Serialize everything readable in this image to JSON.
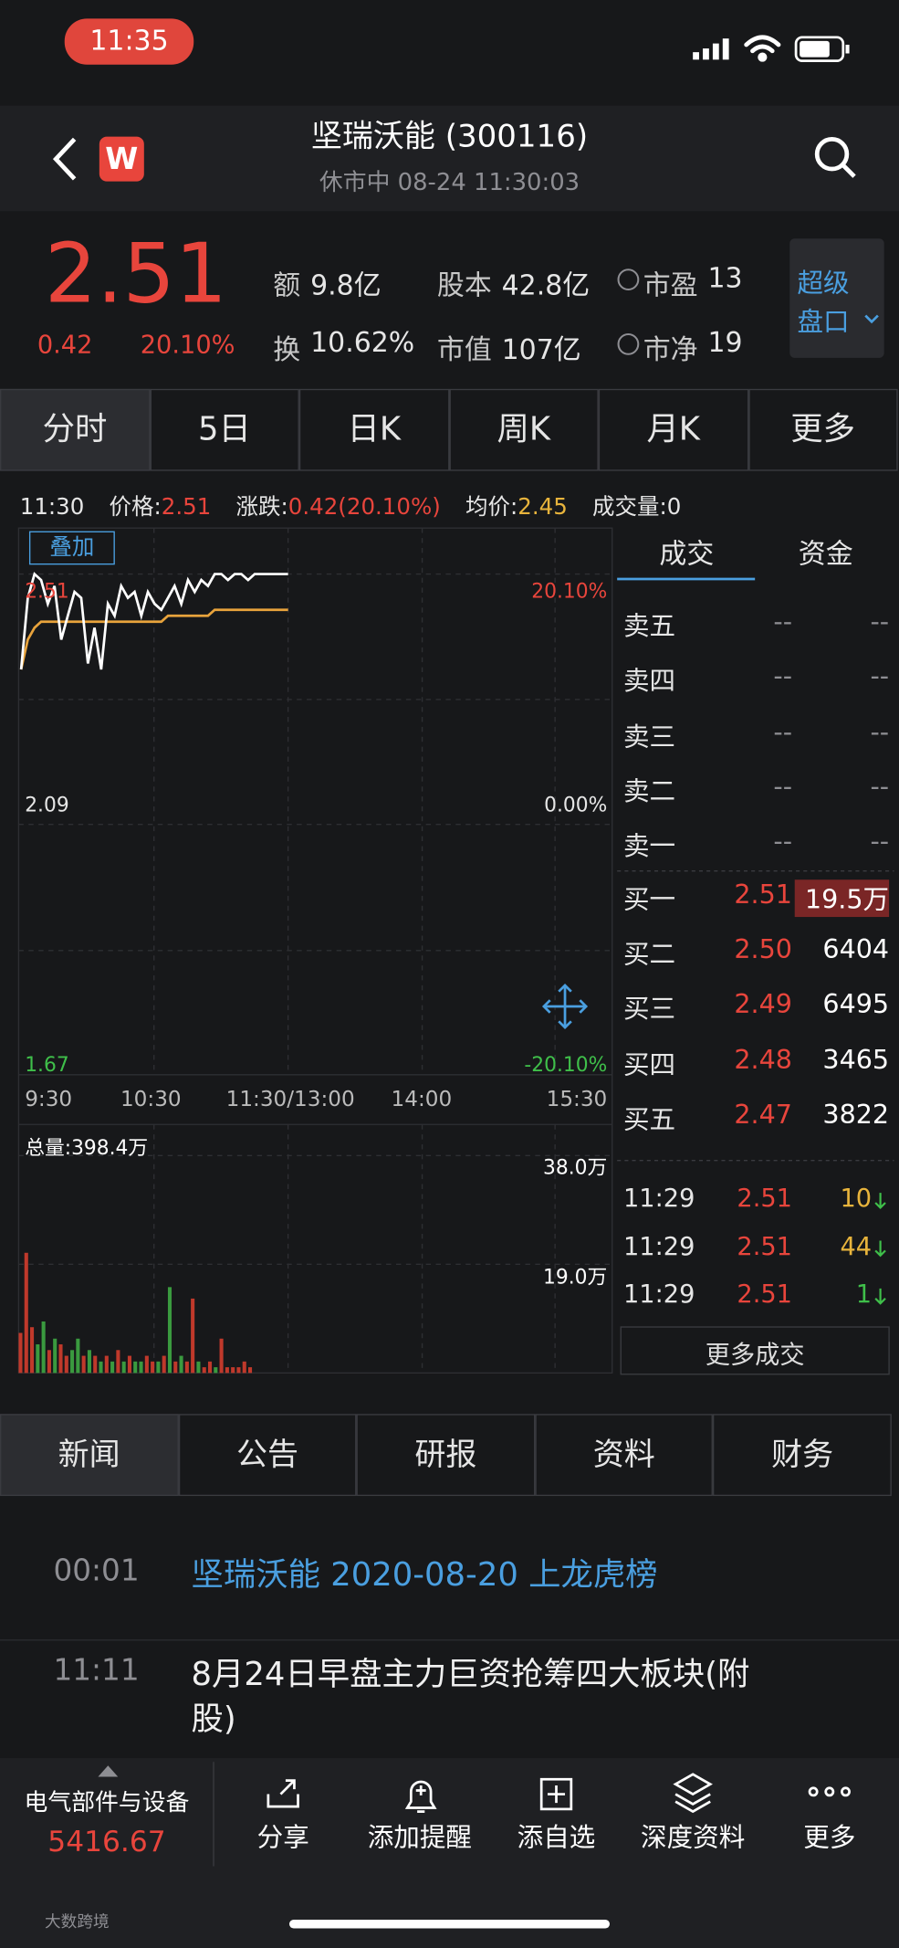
{
  "status": {
    "time": "11:35"
  },
  "header": {
    "logo": "W",
    "title": "坚瑞沃能 (300116)",
    "subtitle": "休市中 08-24 11:30:03"
  },
  "quote": {
    "price": "2.51",
    "change": "0.42",
    "change_pct": "20.10%",
    "stats": [
      {
        "label": "额",
        "value": "9.8亿"
      },
      {
        "label": "股本",
        "value": "42.8亿"
      },
      {
        "label": "市盈",
        "value": "13"
      },
      {
        "label": "换",
        "value": "10.62%"
      },
      {
        "label": "市值",
        "value": "107亿"
      },
      {
        "label": "市净",
        "value": "19"
      }
    ],
    "super_panel": [
      "超级",
      "盘口"
    ]
  },
  "tabs": [
    "分时",
    "5日",
    "日K",
    "周K",
    "月K",
    "更多"
  ],
  "info": {
    "time": "11:30",
    "items": [
      {
        "label": "价格:",
        "value": "2.51"
      },
      {
        "label": "涨跌:",
        "value": "0.42(20.10%)"
      },
      {
        "label": "均价:",
        "value": "2.45"
      },
      {
        "label": "成交量:",
        "value": "0"
      }
    ]
  },
  "chart": {
    "overlay": "叠加",
    "yticks": [
      2.51,
      2.09,
      1.67
    ],
    "pct_ticks": [
      "20.10%",
      "0.00%",
      "-20.10%"
    ],
    "time_labels": [
      "9:30",
      "10:30",
      "11:30/13:00",
      "14:00",
      "15:30"
    ],
    "total_volume": "总量:398.4万",
    "vol_ticks": [
      {
        "value": 38,
        "label": "38.0万"
      },
      {
        "value": 19,
        "label": "19.0万"
      }
    ],
    "price": [
      2.35,
      2.47,
      2.51,
      2.5,
      2.46,
      2.49,
      2.4,
      2.44,
      2.48,
      2.47,
      2.36,
      2.42,
      2.35,
      2.46,
      2.44,
      2.49,
      2.47,
      2.48,
      2.44,
      2.48,
      2.46,
      2.45,
      2.47,
      2.49,
      2.46,
      2.5,
      2.48,
      2.5,
      2.49,
      2.51,
      2.51,
      2.5,
      2.51,
      2.51,
      2.5,
      2.51,
      2.51,
      2.51,
      2.51,
      2.51,
      2.51
    ],
    "avg": [
      2.35,
      2.4,
      2.42,
      2.43,
      2.43,
      2.43,
      2.43,
      2.43,
      2.43,
      2.43,
      2.43,
      2.43,
      2.43,
      2.43,
      2.43,
      2.43,
      2.43,
      2.43,
      2.43,
      2.43,
      2.43,
      2.43,
      2.44,
      2.44,
      2.44,
      2.44,
      2.44,
      2.44,
      2.44,
      2.45,
      2.45,
      2.45,
      2.45,
      2.45,
      2.45,
      2.45,
      2.45,
      2.45,
      2.45,
      2.45,
      2.45
    ],
    "volume": [
      7,
      21,
      8,
      5,
      9,
      4,
      6,
      5,
      3,
      4,
      6,
      3,
      4,
      3,
      2,
      3,
      2,
      4,
      2,
      3,
      2,
      2,
      3,
      2,
      2,
      3,
      15,
      2,
      3,
      2,
      13,
      2,
      1,
      2,
      1,
      6,
      1,
      1,
      1,
      2,
      1
    ]
  },
  "order_book": {
    "tabs": [
      "成交",
      "资金"
    ],
    "asks": [
      {
        "label": "卖五",
        "price": "--",
        "vol": "--"
      },
      {
        "label": "卖四",
        "price": "--",
        "vol": "--"
      },
      {
        "label": "卖三",
        "price": "--",
        "vol": "--"
      },
      {
        "label": "卖二",
        "price": "--",
        "vol": "--"
      },
      {
        "label": "卖一",
        "price": "--",
        "vol": "--"
      }
    ],
    "bids": [
      {
        "label": "买一",
        "price": "2.51",
        "vol": "19.5万"
      },
      {
        "label": "买二",
        "price": "2.50",
        "vol": "6404"
      },
      {
        "label": "买三",
        "price": "2.49",
        "vol": "6495"
      },
      {
        "label": "买四",
        "price": "2.48",
        "vol": "3465"
      },
      {
        "label": "买五",
        "price": "2.47",
        "vol": "3822"
      }
    ],
    "trades": [
      {
        "time": "11:29",
        "price": "2.51",
        "vol": "10"
      },
      {
        "time": "11:29",
        "price": "2.51",
        "vol": "44"
      },
      {
        "time": "11:29",
        "price": "2.51",
        "vol": "1"
      }
    ],
    "more": "更多成交"
  },
  "news_tabs": [
    "新闻",
    "公告",
    "研报",
    "资料",
    "财务"
  ],
  "news": [
    {
      "time": "00:01",
      "title": "坚瑞沃能 2020-08-20 上龙虎榜"
    },
    {
      "time": "11:11",
      "title": "8月24日早盘主力巨资抢筹四大板块(附股)"
    }
  ],
  "bottom": {
    "sector": "电气部件与设备",
    "sector_value": "5416.67",
    "actions": [
      "分享",
      "添加提醒",
      "添自选",
      "深度资料",
      "更多"
    ]
  },
  "watermark": "大数跨境"
}
